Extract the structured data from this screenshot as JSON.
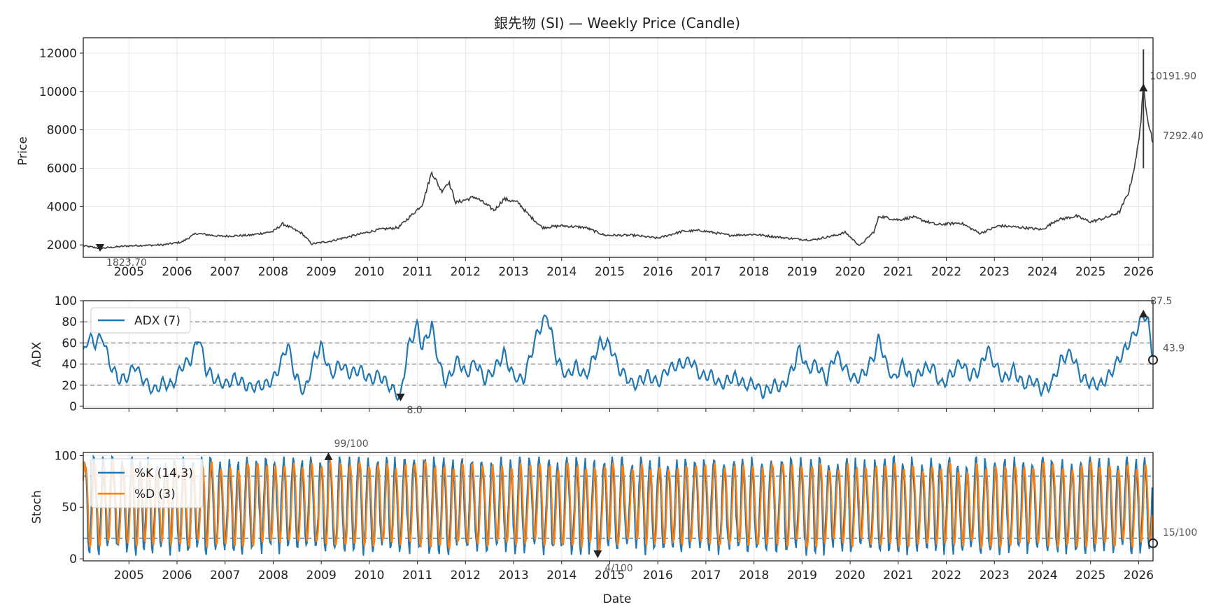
{
  "colors": {
    "candle": "#3a3a3a",
    "adx": "#1f77b4",
    "k": "#1f77b4",
    "d": "#ff7f0e",
    "grid": "#e6e6e6",
    "ref": "#888888",
    "stochRef": "#1f77b4",
    "marker": "#222222"
  },
  "chart_data": [
    {
      "id": "price",
      "type": "line",
      "title": "銀先物 (SI) — Weekly Price (Candle)",
      "ylabel": "Price",
      "xlabel": "",
      "xlim": [
        2004.05,
        2026.3
      ],
      "ylim": [
        1350,
        12800
      ],
      "yticks": [
        2000,
        4000,
        6000,
        8000,
        10000,
        12000
      ],
      "xticks": [
        "2005",
        "2006",
        "2007",
        "2008",
        "2009",
        "2010",
        "2011",
        "2012",
        "2013",
        "2014",
        "2015",
        "2016",
        "2017",
        "2018",
        "2019",
        "2020",
        "2021",
        "2022",
        "2023",
        "2024",
        "2025",
        "2026"
      ],
      "anchors": [
        [
          2004.05,
          1950
        ],
        [
          2004.4,
          1823.7
        ],
        [
          2005,
          1950
        ],
        [
          2005.7,
          2000
        ],
        [
          2006.1,
          2150
        ],
        [
          2006.4,
          2600
        ],
        [
          2006.9,
          2450
        ],
        [
          2007.5,
          2500
        ],
        [
          2008,
          2700
        ],
        [
          2008.2,
          3100
        ],
        [
          2008.6,
          2600
        ],
        [
          2008.8,
          2050
        ],
        [
          2009.2,
          2200
        ],
        [
          2009.7,
          2500
        ],
        [
          2010.2,
          2800
        ],
        [
          2010.6,
          2900
        ],
        [
          2010.9,
          3600
        ],
        [
          2011.1,
          4100
        ],
        [
          2011.3,
          5800
        ],
        [
          2011.5,
          4800
        ],
        [
          2011.65,
          5300
        ],
        [
          2011.8,
          4200
        ],
        [
          2012.2,
          4500
        ],
        [
          2012.6,
          3800
        ],
        [
          2012.8,
          4400
        ],
        [
          2013.1,
          4200
        ],
        [
          2013.3,
          3600
        ],
        [
          2013.6,
          2900
        ],
        [
          2014,
          3000
        ],
        [
          2014.5,
          2900
        ],
        [
          2014.9,
          2500
        ],
        [
          2015.5,
          2500
        ],
        [
          2016,
          2350
        ],
        [
          2016.5,
          2700
        ],
        [
          2016.9,
          2750
        ],
        [
          2017.5,
          2500
        ],
        [
          2018,
          2550
        ],
        [
          2018.7,
          2350
        ],
        [
          2019.2,
          2250
        ],
        [
          2019.7,
          2500
        ],
        [
          2019.9,
          2650
        ],
        [
          2020.2,
          1950
        ],
        [
          2020.5,
          2700
        ],
        [
          2020.6,
          3500
        ],
        [
          2021,
          3300
        ],
        [
          2021.3,
          3450
        ],
        [
          2021.8,
          3050
        ],
        [
          2022.3,
          3150
        ],
        [
          2022.7,
          2600
        ],
        [
          2023.1,
          3000
        ],
        [
          2023.6,
          2900
        ],
        [
          2024,
          2800
        ],
        [
          2024.3,
          3300
        ],
        [
          2024.7,
          3500
        ],
        [
          2025,
          3200
        ],
        [
          2025.3,
          3400
        ],
        [
          2025.6,
          3700
        ],
        [
          2025.8,
          4800
        ],
        [
          2025.95,
          6500
        ],
        [
          2026.05,
          8500
        ],
        [
          2026.1,
          10191.9
        ],
        [
          2026.2,
          8500
        ],
        [
          2026.3,
          7292.4
        ]
      ],
      "spike": {
        "x": 2026.1,
        "low": 6000,
        "high": 12200
      },
      "annotations": [
        {
          "label": "1823.70",
          "x": 2004.4,
          "y": 1823.7,
          "dir": "down"
        },
        {
          "label": "10191.90",
          "x": 2026.1,
          "y": 10191.9,
          "dir": "up"
        },
        {
          "label": "7292.40",
          "x": 2026.3,
          "y": 7292.4,
          "dir": "none"
        }
      ]
    },
    {
      "id": "adx",
      "type": "line",
      "ylabel": "ADX",
      "xlim": [
        2004.05,
        2026.3
      ],
      "ylim": [
        -2,
        100
      ],
      "yticks": [
        0,
        20,
        40,
        60,
        80,
        100
      ],
      "reflines": [
        20,
        40,
        60,
        80
      ],
      "series": [
        {
          "name": "ADX (7)"
        }
      ],
      "anchors": [
        [
          2004.05,
          50
        ],
        [
          2004.15,
          65
        ],
        [
          2004.3,
          60
        ],
        [
          2004.45,
          67
        ],
        [
          2004.6,
          40
        ],
        [
          2004.8,
          25
        ],
        [
          2005,
          28
        ],
        [
          2005.1,
          40
        ],
        [
          2005.3,
          25
        ],
        [
          2005.5,
          15
        ],
        [
          2005.7,
          22
        ],
        [
          2005.9,
          20
        ],
        [
          2006.1,
          38
        ],
        [
          2006.3,
          45
        ],
        [
          2006.45,
          67
        ],
        [
          2006.6,
          35
        ],
        [
          2006.8,
          25
        ],
        [
          2007.0,
          20
        ],
        [
          2007.2,
          27
        ],
        [
          2007.5,
          18
        ],
        [
          2007.8,
          20
        ],
        [
          2008.0,
          25
        ],
        [
          2008.15,
          40
        ],
        [
          2008.3,
          59
        ],
        [
          2008.45,
          30
        ],
        [
          2008.65,
          12
        ],
        [
          2008.85,
          45
        ],
        [
          2009.0,
          57
        ],
        [
          2009.2,
          30
        ],
        [
          2009.4,
          40
        ],
        [
          2009.6,
          30
        ],
        [
          2009.8,
          35
        ],
        [
          2010.0,
          25
        ],
        [
          2010.2,
          30
        ],
        [
          2010.4,
          20
        ],
        [
          2010.55,
          13
        ],
        [
          2010.65,
          8
        ],
        [
          2010.8,
          55
        ],
        [
          2011.0,
          77
        ],
        [
          2011.1,
          55
        ],
        [
          2011.3,
          77
        ],
        [
          2011.45,
          40
        ],
        [
          2011.6,
          22
        ],
        [
          2011.85,
          45
        ],
        [
          2012.0,
          30
        ],
        [
          2012.2,
          42
        ],
        [
          2012.4,
          25
        ],
        [
          2012.6,
          35
        ],
        [
          2012.8,
          50
        ],
        [
          2013.0,
          28
        ],
        [
          2013.2,
          25
        ],
        [
          2013.5,
          70
        ],
        [
          2013.7,
          87
        ],
        [
          2013.9,
          45
        ],
        [
          2014.1,
          28
        ],
        [
          2014.3,
          38
        ],
        [
          2014.5,
          28
        ],
        [
          2014.8,
          60
        ],
        [
          2015.0,
          58
        ],
        [
          2015.2,
          35
        ],
        [
          2015.5,
          20
        ],
        [
          2015.8,
          30
        ],
        [
          2016.0,
          22
        ],
        [
          2016.2,
          35
        ],
        [
          2016.5,
          40
        ],
        [
          2016.7,
          43
        ],
        [
          2016.9,
          28
        ],
        [
          2017.1,
          30
        ],
        [
          2017.3,
          20
        ],
        [
          2017.6,
          28
        ],
        [
          2017.8,
          20
        ],
        [
          2018.0,
          22
        ],
        [
          2018.2,
          12
        ],
        [
          2018.4,
          20
        ],
        [
          2018.6,
          18
        ],
        [
          2018.8,
          35
        ],
        [
          2018.95,
          55
        ],
        [
          2019.1,
          35
        ],
        [
          2019.3,
          40
        ],
        [
          2019.5,
          25
        ],
        [
          2019.7,
          50
        ],
        [
          2019.9,
          35
        ],
        [
          2020.1,
          25
        ],
        [
          2020.3,
          32
        ],
        [
          2020.5,
          48
        ],
        [
          2020.6,
          65
        ],
        [
          2020.75,
          40
        ],
        [
          2020.9,
          25
        ],
        [
          2021.1,
          40
        ],
        [
          2021.3,
          22
        ],
        [
          2021.5,
          35
        ],
        [
          2021.7,
          38
        ],
        [
          2021.9,
          20
        ],
        [
          2022.1,
          30
        ],
        [
          2022.3,
          42
        ],
        [
          2022.5,
          28
        ],
        [
          2022.7,
          35
        ],
        [
          2022.85,
          55
        ],
        [
          2023.0,
          40
        ],
        [
          2023.2,
          25
        ],
        [
          2023.4,
          35
        ],
        [
          2023.6,
          20
        ],
        [
          2023.8,
          25
        ],
        [
          2024.0,
          15
        ],
        [
          2024.2,
          22
        ],
        [
          2024.4,
          45
        ],
        [
          2024.6,
          50
        ],
        [
          2024.8,
          28
        ],
        [
          2025.0,
          22
        ],
        [
          2025.2,
          20
        ],
        [
          2025.4,
          30
        ],
        [
          2025.6,
          45
        ],
        [
          2025.8,
          60
        ],
        [
          2026.0,
          75
        ],
        [
          2026.1,
          87.5
        ],
        [
          2026.2,
          80
        ],
        [
          2026.3,
          43.9
        ]
      ],
      "annotations": [
        {
          "label": "8.0",
          "x": 2010.65,
          "y": 8,
          "dir": "down"
        },
        {
          "label": "87.5",
          "x": 2026.1,
          "y": 87.5,
          "dir": "up"
        },
        {
          "label": "43.9",
          "x": 2026.3,
          "y": 43.9,
          "dir": "circle"
        }
      ]
    },
    {
      "id": "stoch",
      "type": "line",
      "ylabel": "Stoch",
      "xlabel": "Date",
      "xlim": [
        2004.05,
        2026.3
      ],
      "ylim": [
        -2,
        103
      ],
      "yticks": [
        0,
        50,
        100
      ],
      "reflines": [
        20,
        80
      ],
      "xticks": [
        "2005",
        "2006",
        "2007",
        "2008",
        "2009",
        "2010",
        "2011",
        "2012",
        "2013",
        "2014",
        "2015",
        "2016",
        "2017",
        "2018",
        "2019",
        "2020",
        "2021",
        "2022",
        "2023",
        "2024",
        "2025",
        "2026"
      ],
      "series": [
        {
          "name": "%K (14,3)"
        },
        {
          "name": "%D (3)"
        }
      ],
      "annotations": [
        {
          "label": "99/100",
          "x": 2009.15,
          "y": 99,
          "dir": "up"
        },
        {
          "label": "4/100",
          "x": 2014.75,
          "y": 4,
          "dir": "down"
        },
        {
          "label": "15/100",
          "x": 2026.3,
          "y": 15,
          "dir": "circle"
        }
      ]
    }
  ]
}
